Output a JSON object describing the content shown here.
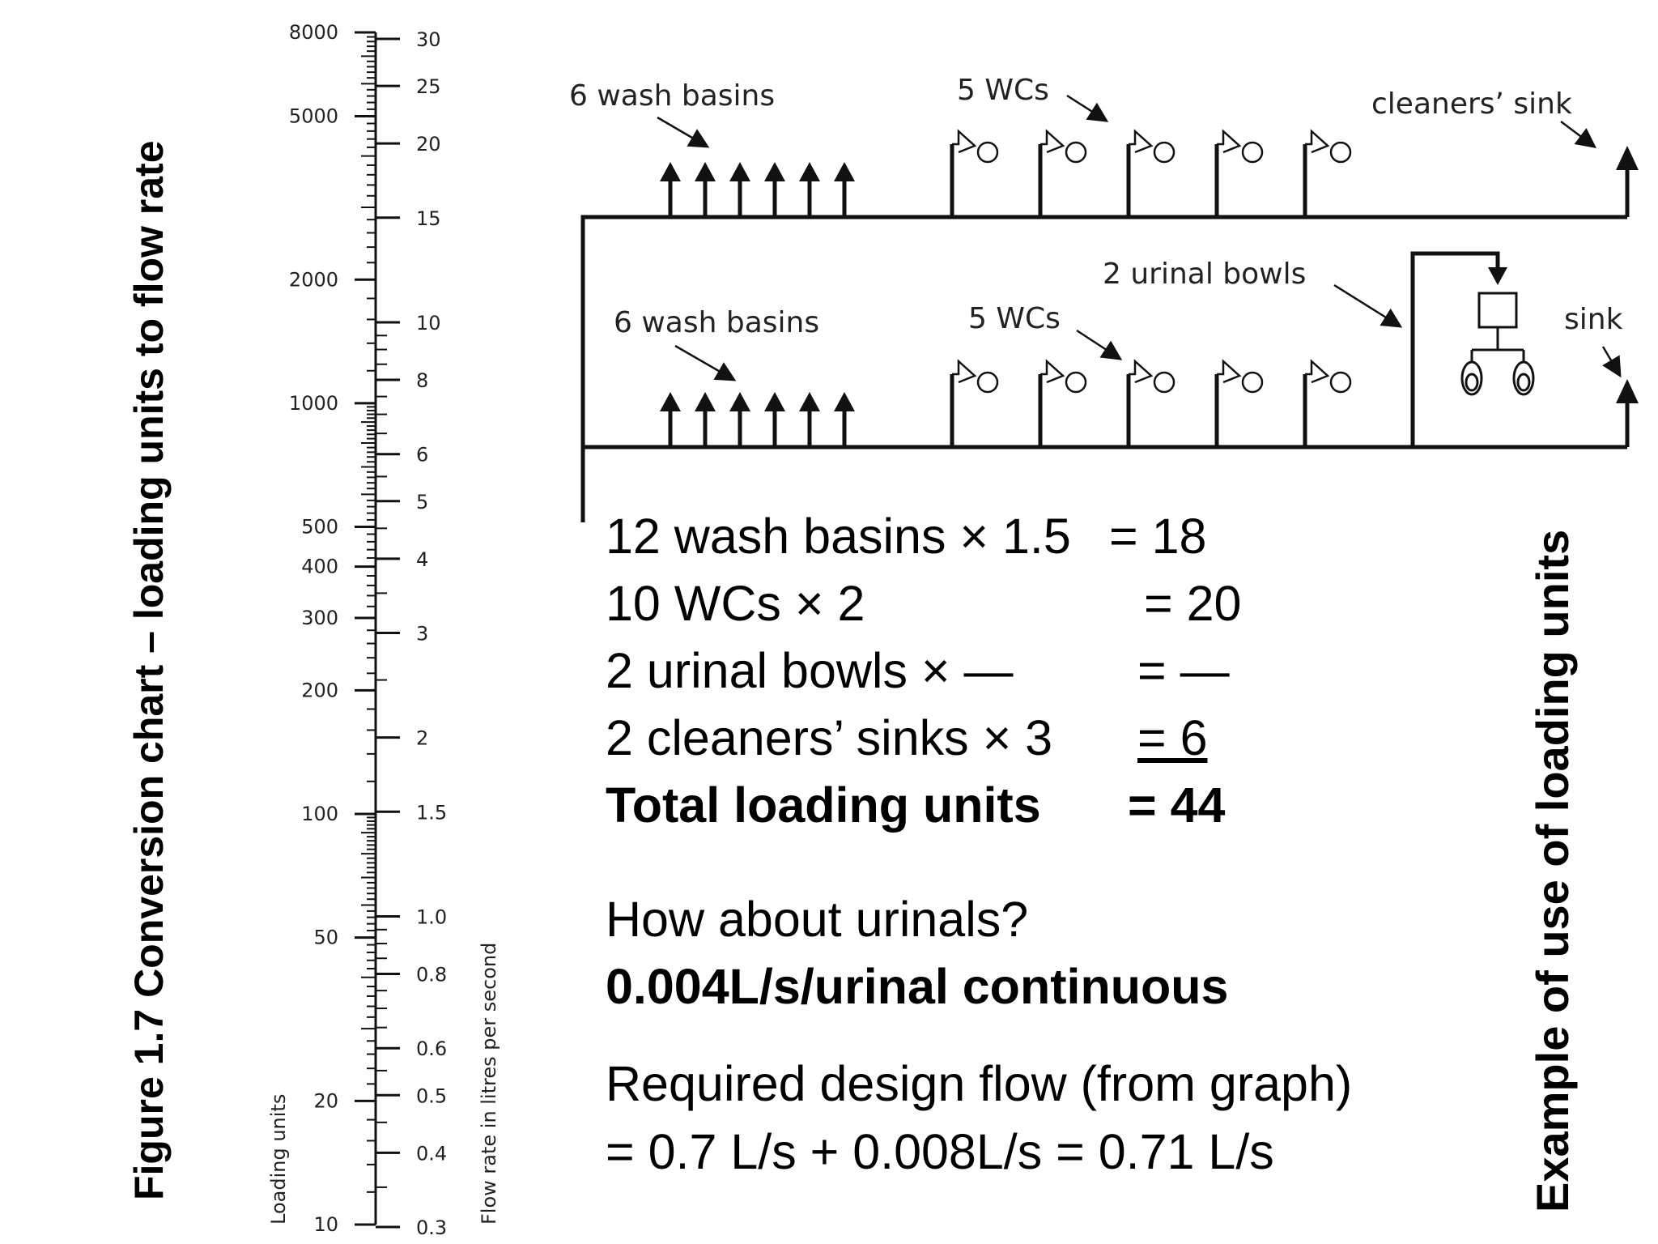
{
  "titles": {
    "figure": "Figure 1.7 Conversion chart – loading units to flow rate",
    "example": "Example of use of loading units"
  },
  "chart": {
    "left_axis_label": "Loading units",
    "right_axis_label": "Flow rate in litres per second",
    "left_ticks": [
      "8000",
      "5000",
      "2000",
      "1000",
      "500",
      "400",
      "300",
      "200",
      "100",
      "50",
      "20",
      "10"
    ],
    "right_ticks": [
      "30",
      "25",
      "20",
      "15",
      "10",
      "8",
      "6",
      "5",
      "4",
      "3",
      "2",
      "1.5",
      "1.0",
      "0.8",
      "0.6",
      "0.5",
      "0.4",
      "0.3"
    ]
  },
  "diagram": {
    "top_basins": "6 wash basins",
    "top_wcs": "5 WCs",
    "cleaners_sink": "cleaners’ sink",
    "urinal_bowls": "2 urinal bowls",
    "bottom_basins": "6 wash basins",
    "bottom_wcs": "5 WCs",
    "sink": "sink"
  },
  "calculation": [
    {
      "item": "12 wash basins × 1.5",
      "value": "= 18"
    },
    {
      "item": "10 WCs × 2",
      "value": "= 20"
    },
    {
      "item": "2 urinal bowls × —",
      "value": "= —"
    },
    {
      "item": "2 cleaners’ sinks × 3",
      "value": "= 6"
    },
    {
      "item": "Total loading units",
      "value": "= 44"
    }
  ],
  "urinal_note": {
    "question": "How about urinals?",
    "answer": "0.004L/s/urinal continuous"
  },
  "design_flow": {
    "line1": "Required design flow (from graph)",
    "line2": "= 0.7 L/s + 0.008L/s = 0.71 L/s"
  }
}
